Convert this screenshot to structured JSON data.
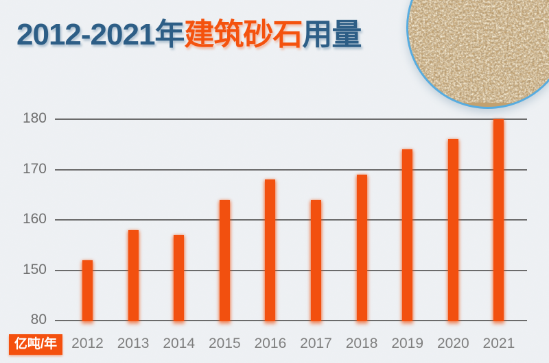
{
  "page": {
    "background_color": "#edf0f3"
  },
  "title": {
    "part_years": "2012-2021年",
    "part_subject": "建筑砂石",
    "part_suffix": "用量",
    "color_primary": "#2d5e86",
    "color_accent": "#f4520e"
  },
  "unit_badge": {
    "label": "亿吨/年",
    "background": "#f4500e",
    "text_color": "#ffffff"
  },
  "decor": {
    "sand_photo": "sand-gravel-closeup-circle",
    "border_color": "#57ace0"
  },
  "chart_data": {
    "type": "bar",
    "title": "2012-2021年建筑砂石用量",
    "unit": "亿吨/年",
    "categories": [
      "2012",
      "2013",
      "2014",
      "2015",
      "2016",
      "2017",
      "2018",
      "2019",
      "2020",
      "2021"
    ],
    "values": [
      152,
      158,
      157,
      164,
      168,
      164,
      169,
      174,
      176,
      180
    ],
    "y_ticks": [
      180,
      170,
      160,
      150,
      80
    ],
    "axis_break_between": [
      150,
      80
    ],
    "ylim_visible": [
      150,
      180
    ],
    "grid": "horizontal-only",
    "legend": "none",
    "bar_color": "#f2500f",
    "grid_color": "#6b6b6b",
    "y_tick_color": "#6f6f6f",
    "x_tick_color": "#7e7e7e"
  }
}
